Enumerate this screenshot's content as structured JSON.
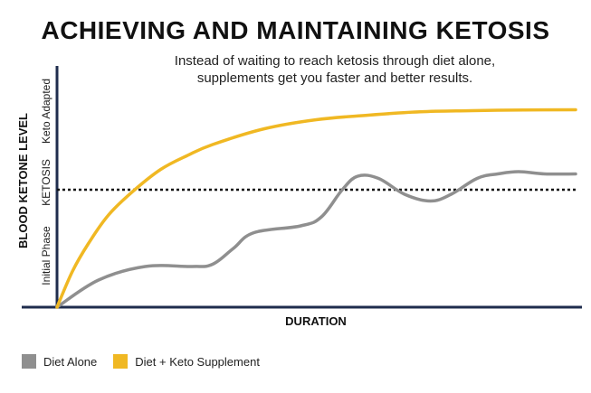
{
  "chart_data": {
    "type": "line",
    "title": "ACHIEVING AND MAINTAINING KETOSIS",
    "subtitle_lines": [
      "Instead of waiting to reach ketosis through diet alone,",
      "supplements get you faster and better results."
    ],
    "xlabel": "DURATION",
    "ylabel": "BLOOD KETONE LEVEL",
    "ytick_labels": [
      "Initial Phase",
      "KETOSIS",
      "Keto Adapted"
    ],
    "xlim": [
      0,
      100
    ],
    "ylim": [
      0,
      100
    ],
    "ketosis_threshold": 52,
    "series": [
      {
        "name": "Diet Alone",
        "color": "#8f8f8f",
        "x": [
          0,
          8,
          17,
          26,
          30,
          34,
          38,
          47,
          51,
          55,
          58,
          62,
          67,
          72,
          76,
          81,
          85,
          89,
          94,
          100
        ],
        "y": [
          0,
          12,
          18,
          18,
          19,
          26,
          33,
          36,
          40,
          52,
          58,
          57,
          50,
          47,
          50,
          57,
          59,
          60,
          59,
          59
        ]
      },
      {
        "name": "Diet + Keto Supplement",
        "color": "#f0b823",
        "x": [
          0,
          3,
          6,
          10,
          15,
          20,
          25,
          30,
          40,
          50,
          60,
          70,
          80,
          90,
          100
        ],
        "y": [
          0,
          16,
          28,
          41,
          52,
          61,
          67,
          72,
          79,
          83,
          85,
          86.5,
          87,
          87.3,
          87.4
        ]
      }
    ],
    "grid": false,
    "legend_position": "bottom-left"
  },
  "colors": {
    "axis": "#1f2d4d",
    "threshold": "#111111"
  }
}
